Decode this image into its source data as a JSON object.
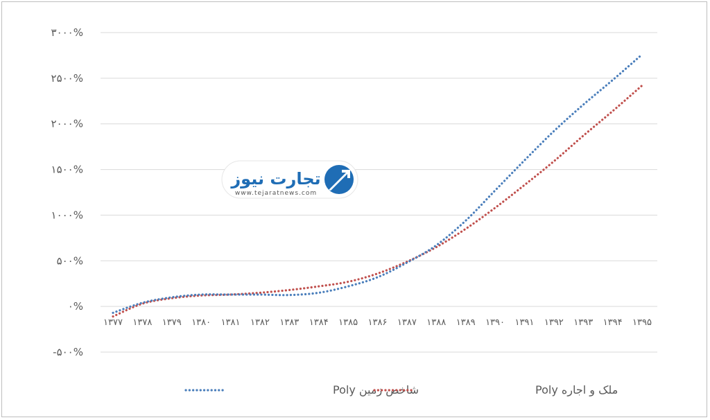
{
  "chart_data": {
    "type": "line",
    "categories": [
      "۱۳۷۷",
      "۱۳۷۸",
      "۱۳۷۹",
      "۱۳۸۰",
      "۱۳۸۱",
      "۱۳۸۲",
      "۱۳۸۳",
      "۱۳۸۴",
      "۱۳۸۵",
      "۱۳۸۶",
      "۱۳۸۷",
      "۱۳۸۸",
      "۱۳۸۹",
      "۱۳۹۰",
      "۱۳۹۱",
      "۱۳۹۲",
      "۱۳۹۳",
      "۱۳۹۴",
      "۱۳۹۵"
    ],
    "y_ticks": [
      -500,
      0,
      500,
      1000,
      1500,
      2000,
      2500,
      3000
    ],
    "y_tick_labels": [
      "-۵۰۰%",
      "۰%",
      "۵۰۰%",
      "۱۰۰۰%",
      "۱۵۰۰%",
      "۲۰۰۰%",
      "۲۵۰۰%",
      "۳۰۰۰%"
    ],
    "ylim": [
      -500,
      3000
    ],
    "grid": true,
    "legend_position": "bottom",
    "series": [
      {
        "name": "شاخص زمین Poly",
        "color": "#4a7ebb",
        "values": [
          -70,
          40,
          100,
          130,
          130,
          130,
          125,
          150,
          220,
          320,
          480,
          670,
          940,
          1270,
          1600,
          1920,
          2210,
          2480,
          2760
        ]
      },
      {
        "name": "ملک و اجاره Poly",
        "color": "#c0504d",
        "values": [
          -110,
          30,
          90,
          120,
          130,
          150,
          180,
          220,
          270,
          360,
          490,
          650,
          850,
          1080,
          1330,
          1590,
          1870,
          2140,
          2420
        ]
      }
    ]
  },
  "watermark": {
    "name": "تجارت نیوز",
    "url": "www.tejaratnews.com",
    "colors": {
      "blue": "#1f6db5",
      "red": "#e0242c"
    }
  }
}
